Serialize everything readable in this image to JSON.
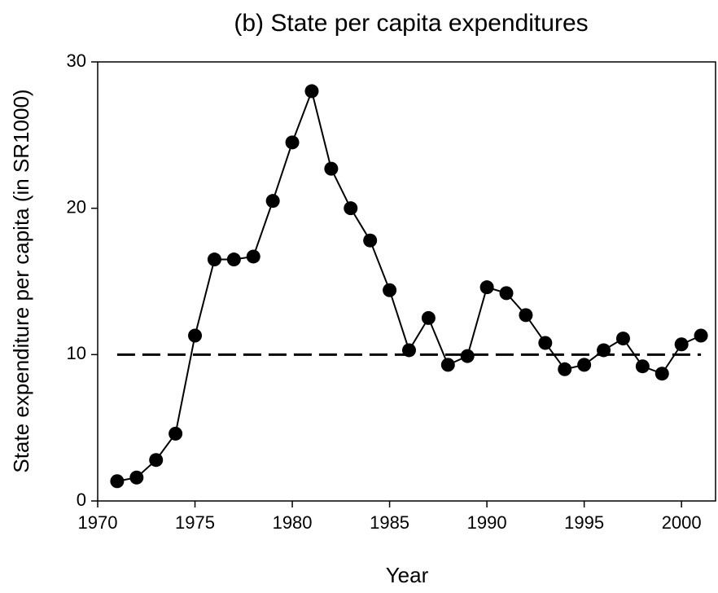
{
  "chart_data": {
    "type": "line",
    "title": "(b) State per capita expenditures",
    "x_label": "Year",
    "y_label": "State expenditure per capita (in SR1000)",
    "x": [
      1971,
      1972,
      1973,
      1974,
      1975,
      1976,
      1977,
      1978,
      1979,
      1980,
      1981,
      1982,
      1983,
      1984,
      1985,
      1986,
      1987,
      1988,
      1989,
      1990,
      1991,
      1992,
      1993,
      1994,
      1995,
      1996,
      1997,
      1998,
      1999,
      2000,
      2001
    ],
    "values": [
      1.35,
      1.6,
      2.8,
      4.6,
      11.3,
      16.5,
      16.5,
      16.7,
      20.5,
      24.5,
      28.0,
      22.7,
      20.0,
      17.8,
      14.4,
      10.3,
      12.5,
      9.3,
      9.9,
      14.6,
      14.2,
      12.7,
      10.8,
      9.0,
      9.3,
      10.3,
      11.1,
      9.2,
      8.7,
      10.7,
      11.3
    ],
    "color": "#000000",
    "reference_line": 10,
    "xlim": [
      1970,
      2001.75
    ],
    "xticks": [
      1970,
      1975,
      1980,
      1985,
      1990,
      1995,
      2000
    ],
    "ylim": [
      0,
      30
    ],
    "yticks": [
      0,
      10,
      20,
      30
    ]
  }
}
